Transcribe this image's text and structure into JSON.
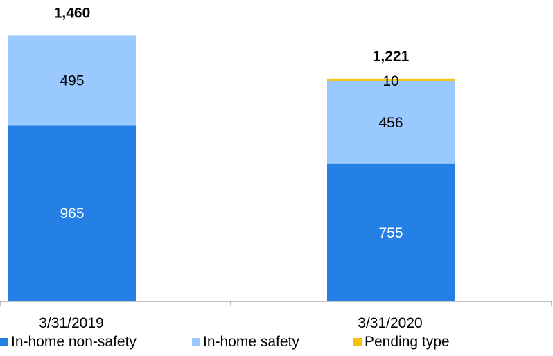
{
  "chart_data": {
    "type": "bar",
    "stacked": true,
    "categories": [
      "3/31/2019",
      "3/31/2020"
    ],
    "series": [
      {
        "name": "In-home non-safety",
        "values": [
          965,
          755
        ],
        "color": "#2580E6"
      },
      {
        "name": "In-home safety",
        "values": [
          495,
          456
        ],
        "color": "#99C9FF"
      },
      {
        "name": "Pending type",
        "values": [
          null,
          10
        ],
        "color": "#F2C20C"
      }
    ],
    "totals": [
      1460,
      1221
    ],
    "total_labels": [
      "1,460",
      "1,221"
    ],
    "value_labels": [
      [
        "965",
        "755"
      ],
      [
        "495",
        "456"
      ],
      [
        "",
        "10"
      ]
    ],
    "legend_position": "bottom",
    "grid": false
  }
}
